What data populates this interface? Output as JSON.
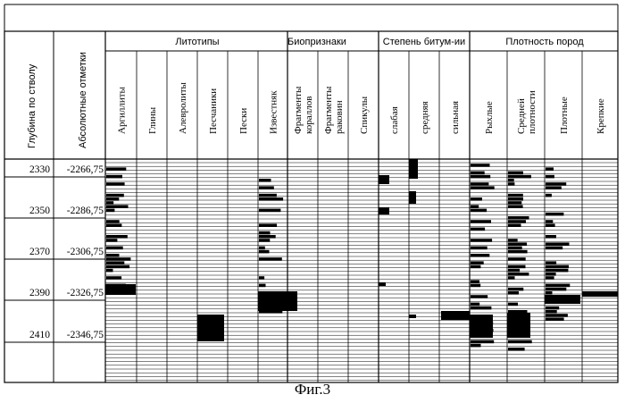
{
  "caption": "Фиг.3",
  "table": {
    "col_depth": "Глубина по стволу",
    "col_abs": "Абсолютные отметки",
    "groups": [
      "Литотипы",
      "Биопризнаки",
      "Степень битум-ии",
      "Плотность пород"
    ],
    "subcolumns": [
      "Аргиллиты",
      "Глины",
      "Алевролиты",
      "Песчаники",
      "Пески",
      "Известняк",
      "Фрагменты кораллов",
      "Фрагменты раковин",
      "Спикулы",
      "слабая",
      "средняя",
      "сильная",
      "Рыхлые",
      "Средней плотности",
      "Плотные",
      "Крепкие"
    ],
    "rows": [
      {
        "depth": "2330",
        "abs": "-2266,75"
      },
      {
        "depth": "2350",
        "abs": "-2286,75"
      },
      {
        "depth": "2370",
        "abs": "-2306,75"
      },
      {
        "depth": "2390",
        "abs": "-2326,75"
      },
      {
        "depth": "2410",
        "abs": "-2346,75"
      }
    ]
  }
}
